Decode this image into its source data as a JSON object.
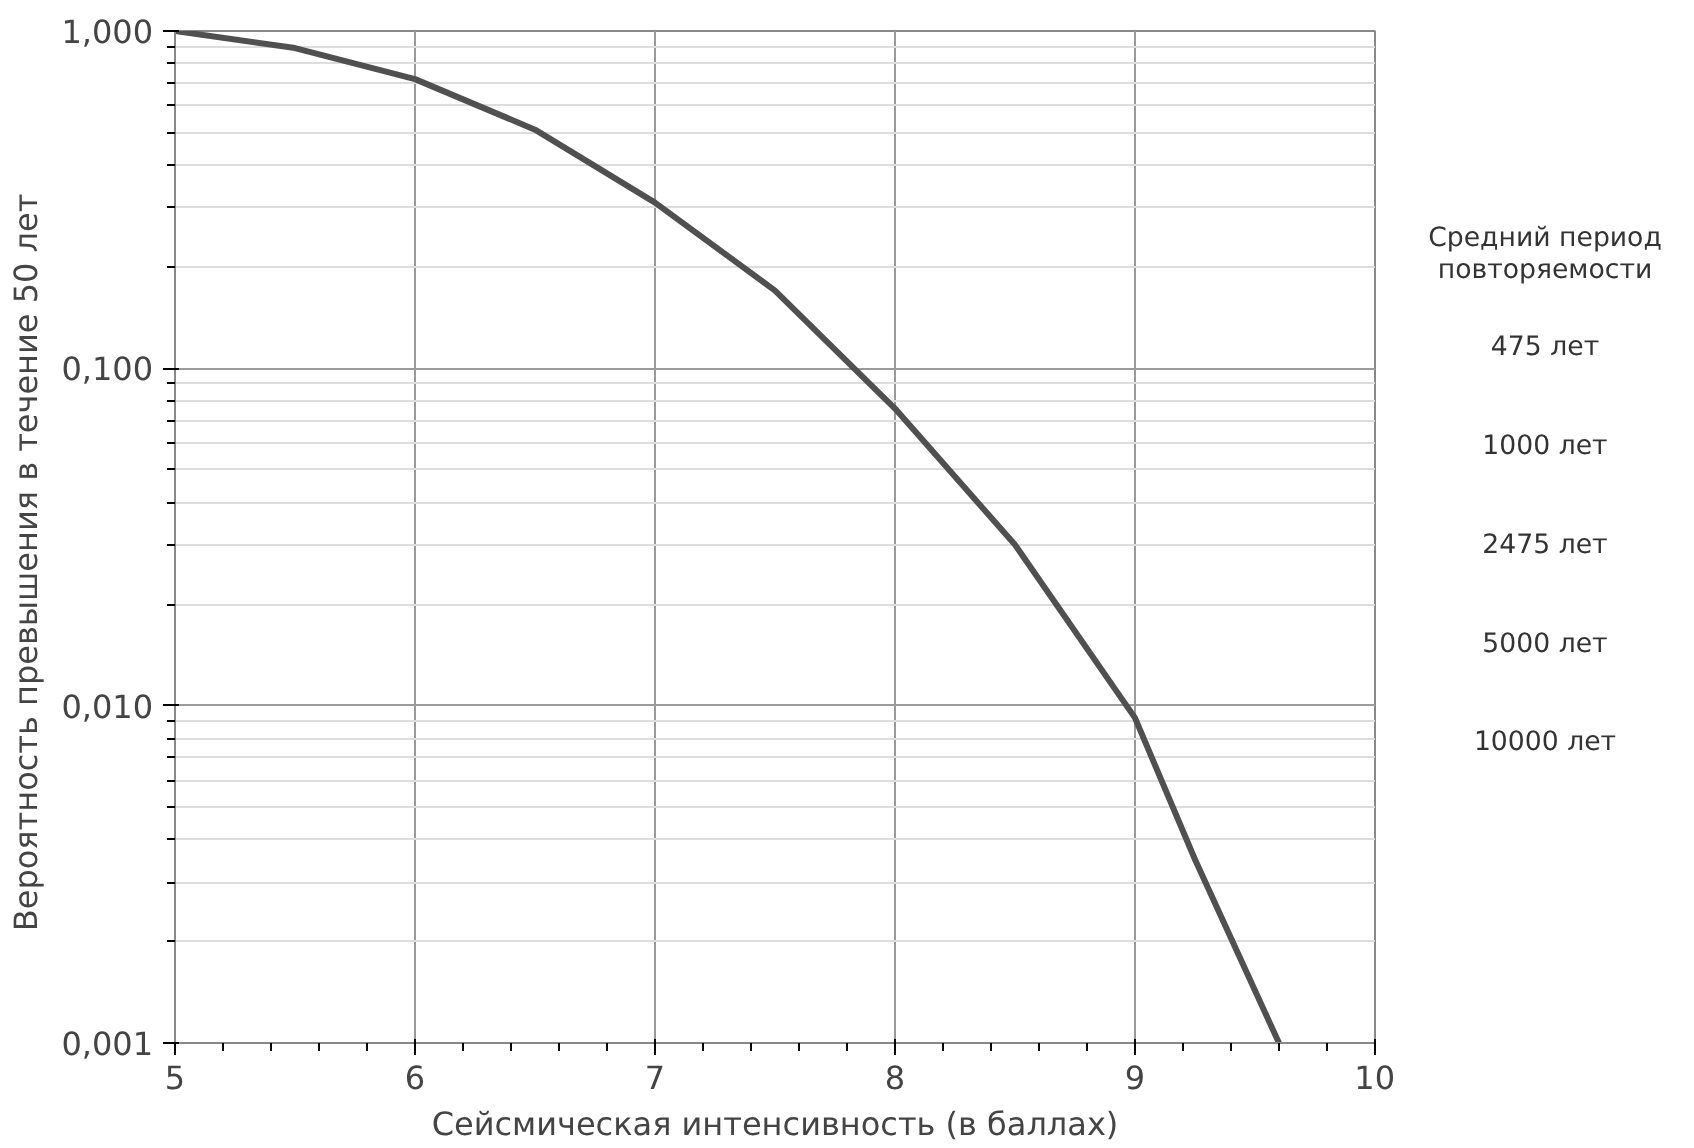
{
  "chart_data": {
    "type": "line",
    "xlabel": "Сейсмическая интенсивность (в баллах)",
    "ylabel": "Вероятность  превышения  в  течение  50  лет",
    "x": [
      5,
      5.5,
      6,
      6.5,
      7,
      7.5,
      8,
      8.5,
      9,
      9.25,
      9.6
    ],
    "series": [
      {
        "color": "#505050",
        "values": [
          1.0,
          0.89,
          0.72,
          0.51,
          0.31,
          0.17,
          0.076,
          0.03,
          0.0092,
          0.0035,
          0.001
        ]
      }
    ],
    "xlim": [
      5,
      10
    ],
    "xticks": [
      5,
      6,
      7,
      8,
      9,
      10
    ],
    "ylim": [
      0.001,
      1
    ],
    "yticks": [
      {
        "value": 0.001,
        "label": "0,001"
      },
      {
        "value": 0.01,
        "label": "0,010"
      },
      {
        "value": 0.1,
        "label": "0,100"
      },
      {
        "value": 1,
        "label": "1,000"
      }
    ],
    "annotations": [
      "Средний период повторяемости",
      "475 лет",
      "1000 лет",
      "2475 лет",
      "5000 лет",
      "10000 лет"
    ],
    "log": "y",
    "grid": true,
    "marker": "none",
    "line_style": "solid"
  }
}
